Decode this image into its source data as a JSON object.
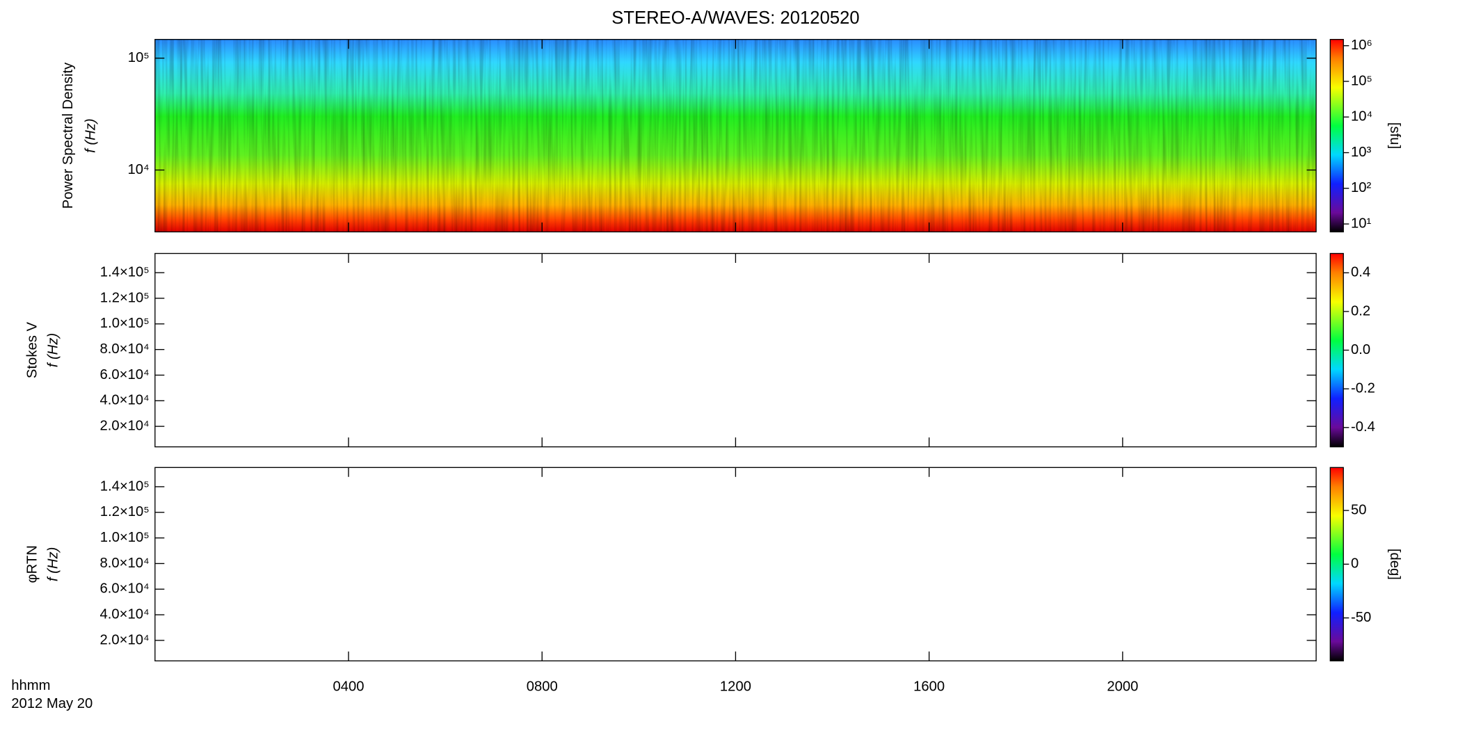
{
  "title": "STEREO-A/WAVES: 20120520",
  "x_axis": {
    "label": "hhmm",
    "date": "2012 May 20",
    "xlim": [
      0,
      24
    ],
    "xticks": [
      {
        "value": 4,
        "label": "0400"
      },
      {
        "value": 8,
        "label": "0800"
      },
      {
        "value": 12,
        "label": "1200"
      },
      {
        "value": 16,
        "label": "1600"
      },
      {
        "value": 20,
        "label": "2000"
      }
    ]
  },
  "chart_data": [
    {
      "type": "heatmap",
      "y_label": "Power Spectral Density",
      "y_unit_label": "f (Hz)",
      "log_y": true,
      "ylim": [
        2800,
        147000
      ],
      "yticks": [
        {
          "value": 10000,
          "label": "10⁴"
        },
        {
          "value": 100000,
          "label": "10⁵"
        }
      ],
      "colorbar": {
        "label": "[sfu]",
        "log": true,
        "lim": [
          6,
          1500000
        ],
        "ticks": [
          {
            "value": 10,
            "label": "10¹"
          },
          {
            "value": 100,
            "label": "10²"
          },
          {
            "value": 1000,
            "label": "10³"
          },
          {
            "value": 10000,
            "label": "10⁴"
          },
          {
            "value": 100000,
            "label": "10⁵"
          },
          {
            "value": 1000000,
            "label": "10⁶"
          }
        ]
      }
    },
    {
      "type": "heatmap",
      "y_label": "Stokes V",
      "y_unit_label": "f (Hz)",
      "log_y": false,
      "ylim": [
        4000,
        155000
      ],
      "yticks": [
        {
          "value": 20000,
          "label": "2.0×10⁴"
        },
        {
          "value": 40000,
          "label": "4.0×10⁴"
        },
        {
          "value": 60000,
          "label": "6.0×10⁴"
        },
        {
          "value": 80000,
          "label": "8.0×10⁴"
        },
        {
          "value": 100000,
          "label": "1.0×10⁵"
        },
        {
          "value": 120000,
          "label": "1.2×10⁵"
        },
        {
          "value": 140000,
          "label": "1.4×10⁵"
        }
      ],
      "colorbar": {
        "log": false,
        "lim": [
          -0.5,
          0.5
        ],
        "ticks": [
          {
            "value": -0.4,
            "label": "-0.4"
          },
          {
            "value": -0.2,
            "label": "-0.2"
          },
          {
            "value": 0,
            "label": "0.0"
          },
          {
            "value": 0.2,
            "label": "0.2"
          },
          {
            "value": 0.4,
            "label": "0.4"
          }
        ]
      }
    },
    {
      "type": "heatmap",
      "y_label": "φRTN",
      "y_unit_label": "f (Hz)",
      "log_y": false,
      "ylim": [
        4000,
        155000
      ],
      "yticks": [
        {
          "value": 20000,
          "label": "2.0×10⁴"
        },
        {
          "value": 40000,
          "label": "4.0×10⁴"
        },
        {
          "value": 60000,
          "label": "6.0×10⁴"
        },
        {
          "value": 80000,
          "label": "8.0×10⁴"
        },
        {
          "value": 100000,
          "label": "1.0×10⁵"
        },
        {
          "value": 120000,
          "label": "1.2×10⁵"
        },
        {
          "value": 140000,
          "label": "1.4×10⁵"
        }
      ],
      "colorbar": {
        "label": "[deg]",
        "log": false,
        "lim": [
          -90,
          90
        ],
        "ticks": [
          -50,
          0,
          50
        ]
      }
    }
  ]
}
